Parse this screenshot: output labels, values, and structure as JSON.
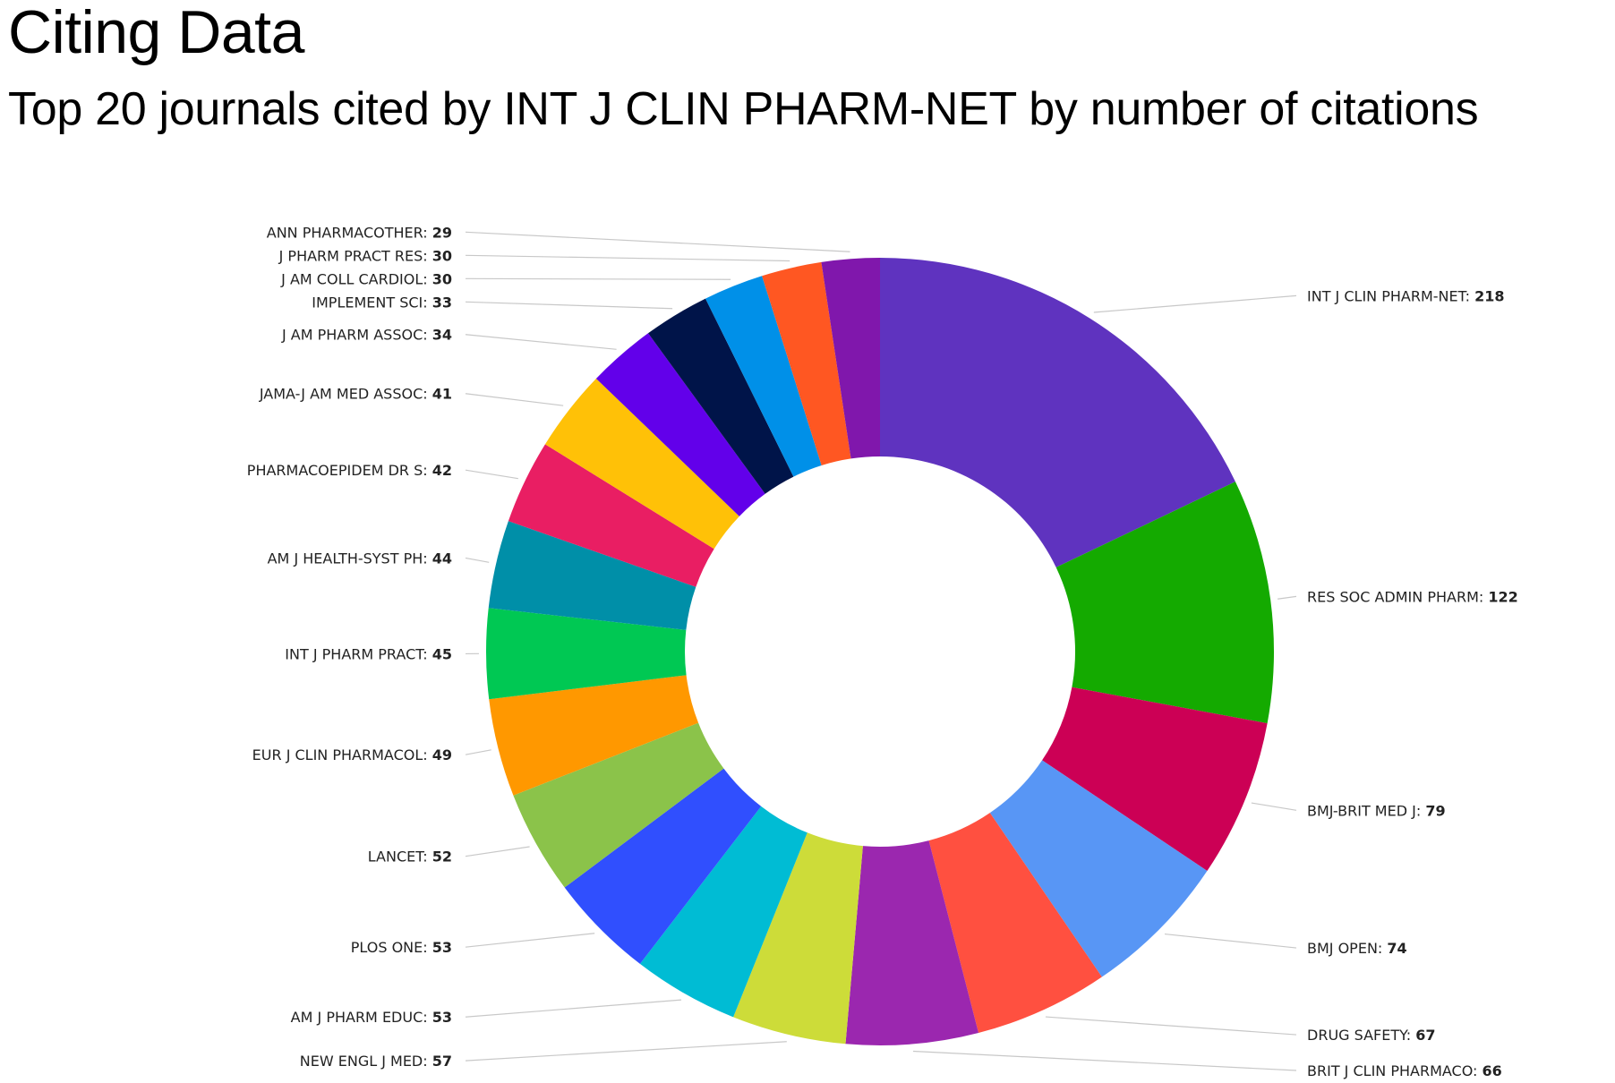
{
  "page": {
    "title": "Citing Data",
    "subtitle": "Top 20 journals cited by INT J CLIN PHARM-NET by number of citations"
  },
  "chart_data": {
    "type": "pie",
    "variant": "donut",
    "title": "Citing Data",
    "subtitle": "Top 20 journals cited by INT J CLIN PHARM-NET by number of citations",
    "slices": [
      {
        "label": "INT J CLIN PHARM-NET",
        "value": 218,
        "color": "#5f33bf"
      },
      {
        "label": "RES SOC ADMIN PHARM",
        "value": 122,
        "color": "#14aa00"
      },
      {
        "label": "BMJ-BRIT MED J",
        "value": 79,
        "color": "#cc0055"
      },
      {
        "label": "BMJ OPEN",
        "value": 74,
        "color": "#5896f5"
      },
      {
        "label": "DRUG SAFETY",
        "value": 67,
        "color": "#ff5040"
      },
      {
        "label": "BRIT J CLIN PHARMACO",
        "value": 66,
        "color": "#9b27af"
      },
      {
        "label": "NEW ENGL J MED",
        "value": 57,
        "color": "#cddc39"
      },
      {
        "label": "AM J PHARM EDUC",
        "value": 53,
        "color": "#00bcd4"
      },
      {
        "label": "PLOS ONE",
        "value": 53,
        "color": "#304ffe"
      },
      {
        "label": "LANCET",
        "value": 52,
        "color": "#8bc34a"
      },
      {
        "label": "EUR J CLIN PHARMACOL",
        "value": 49,
        "color": "#ff9800"
      },
      {
        "label": "INT J PHARM PRACT",
        "value": 45,
        "color": "#00c853"
      },
      {
        "label": "AM J HEALTH-SYST PH",
        "value": 44,
        "color": "#008fa8"
      },
      {
        "label": "PHARMACOEPIDEM DR S",
        "value": 42,
        "color": "#e91e63"
      },
      {
        "label": "JAMA-J AM MED ASSOC",
        "value": 41,
        "color": "#ffc107"
      },
      {
        "label": "J AM PHARM ASSOC",
        "value": 34,
        "color": "#6200ea"
      },
      {
        "label": "IMPLEMENT SCI",
        "value": 33,
        "color": "#001449"
      },
      {
        "label": "J AM COLL CARDIOL",
        "value": 30,
        "color": "#0090e8"
      },
      {
        "label": "J PHARM PRACT RES",
        "value": 30,
        "color": "#ff5722"
      },
      {
        "label": "ANN PHARMACOTHER",
        "value": 29,
        "color": "#8017ac"
      }
    ],
    "start_angle": "12 o'clock",
    "direction": "clockwise",
    "legend": "none",
    "labels": "outside with leader lines"
  }
}
